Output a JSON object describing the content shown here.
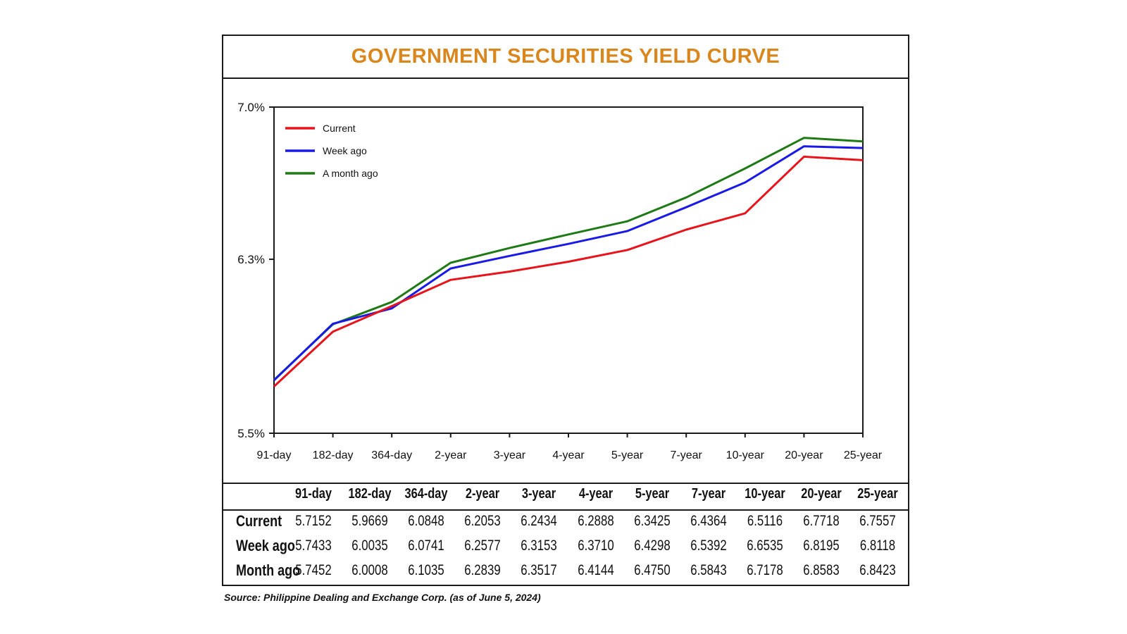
{
  "chart_data": {
    "type": "line",
    "title": "GOVERNMENT SECURITIES YIELD CURVE",
    "categories": [
      "91-day",
      "182-day",
      "364-day",
      "2-year",
      "3-year",
      "4-year",
      "5-year",
      "7-year",
      "10-year",
      "20-year",
      "25-year"
    ],
    "y_ticks": [
      "7.0%",
      "6.3%",
      "5.5%"
    ],
    "ylim": [
      5.5,
      7.0
    ],
    "grid": false,
    "legend_position": "top-left",
    "series": [
      {
        "name": "Current",
        "color": "#e8141b",
        "values": [
          5.7152,
          5.9669,
          6.0848,
          6.2053,
          6.2434,
          6.2888,
          6.3425,
          6.4364,
          6.5116,
          6.7718,
          6.7557
        ]
      },
      {
        "name": "Week ago",
        "color": "#1a1ae6",
        "values": [
          5.7433,
          6.0035,
          6.0741,
          6.2577,
          6.3153,
          6.371,
          6.4298,
          6.5392,
          6.6535,
          6.8195,
          6.8118
        ]
      },
      {
        "name": "A month ago",
        "color": "#1e7a14",
        "values": [
          5.7452,
          6.0008,
          6.1035,
          6.2839,
          6.3517,
          6.4144,
          6.475,
          6.5843,
          6.7178,
          6.8583,
          6.8423
        ]
      }
    ]
  },
  "table": {
    "columns": [
      "91-day",
      "182-day",
      "364-day",
      "2-year",
      "3-year",
      "4-year",
      "5-year",
      "7-year",
      "10-year",
      "20-year",
      "25-year"
    ],
    "rows": [
      {
        "label": "Current",
        "values": [
          "5.7152",
          "5.9669",
          "6.0848",
          "6.2053",
          "6.2434",
          "6.2888",
          "6.3425",
          "6.4364",
          "6.5116",
          "6.7718",
          "6.7557"
        ]
      },
      {
        "label": "Week ago",
        "values": [
          "5.7433",
          "6.0035",
          "6.0741",
          "6.2577",
          "6.3153",
          "6.3710",
          "6.4298",
          "6.5392",
          "6.6535",
          "6.8195",
          "6.8118"
        ]
      },
      {
        "label": "Month ago",
        "values": [
          "5.7452",
          "6.0008",
          "6.1035",
          "6.2839",
          "6.3517",
          "6.4144",
          "6.4750",
          "6.5843",
          "6.7178",
          "6.8583",
          "6.8423"
        ]
      }
    ]
  },
  "source": "Source: Philippine Dealing and Exchange Corp. (as of June 5, 2024)"
}
